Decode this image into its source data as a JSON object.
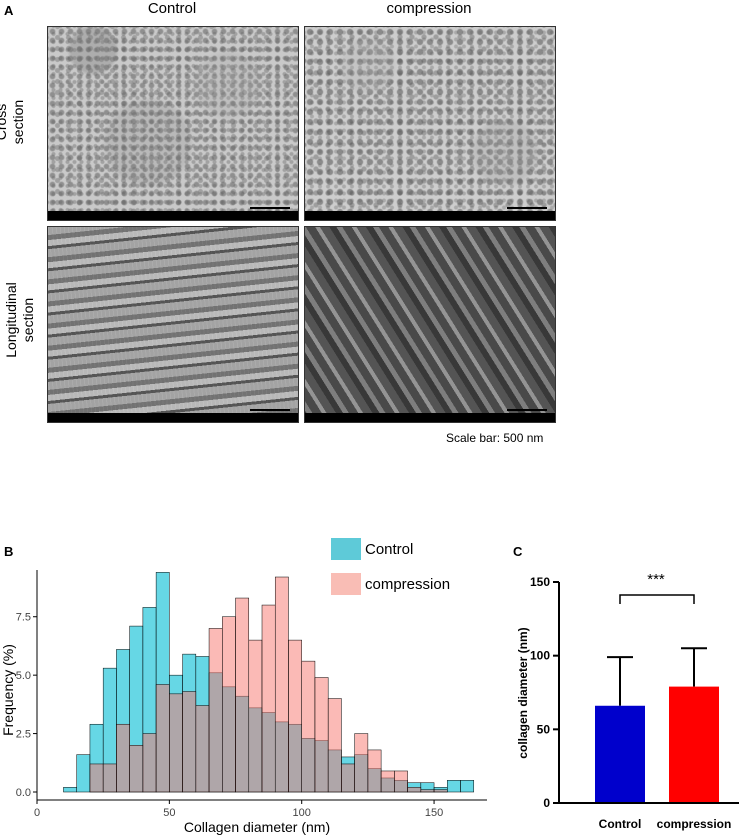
{
  "panel_a": {
    "letter": "A",
    "col_titles": [
      "Control",
      "compression"
    ],
    "row_labels": [
      "Cross section",
      "Longitudinal section"
    ],
    "scale_note": "Scale bar: 500 nm"
  },
  "panel_b": {
    "letter": "B",
    "legend": [
      "Control",
      "compression"
    ]
  },
  "panel_c": {
    "letter": "C",
    "significance": "***"
  },
  "chart_data": [
    {
      "type": "bar",
      "subtype": "histogram",
      "xlabel": "Collagen diameter (nm)",
      "ylabel": "Frequency (%)",
      "xlim": [
        0,
        170
      ],
      "ylim": [
        0,
        9.5
      ],
      "xticks": [
        "0",
        "50",
        "100",
        "150"
      ],
      "yticks": [
        "0.0",
        "2.5",
        "5.0",
        "7.5"
      ],
      "grid": false,
      "legend_position": "top-right",
      "bin_width": 5,
      "bin_starts": [
        5,
        10,
        15,
        20,
        25,
        30,
        35,
        40,
        45,
        50,
        55,
        60,
        65,
        70,
        75,
        80,
        85,
        90,
        95,
        100,
        105,
        110,
        115,
        120,
        125,
        130,
        135,
        140,
        145,
        150,
        155,
        160
      ],
      "series": [
        {
          "name": "Control",
          "color": "#00BCD4",
          "values": [
            0,
            0.2,
            1.6,
            2.9,
            5.3,
            6.1,
            7.1,
            7.9,
            9.4,
            5.0,
            5.9,
            5.8,
            5.1,
            4.5,
            4.1,
            3.6,
            3.4,
            3.0,
            2.9,
            2.3,
            2.2,
            1.8,
            1.5,
            1.6,
            1.0,
            0.6,
            0.5,
            0.4,
            0.4,
            0.2,
            0.5,
            0.5
          ]
        },
        {
          "name": "compression",
          "color": "#F8766D",
          "values": [
            0,
            0,
            0,
            1.2,
            1.2,
            2.9,
            2.0,
            2.5,
            4.6,
            4.2,
            4.3,
            3.7,
            7.0,
            7.5,
            8.3,
            6.5,
            8.0,
            9.2,
            6.5,
            5.6,
            4.9,
            4.0,
            1.2,
            2.5,
            1.8,
            0.9,
            0.9,
            0.2,
            0.1,
            0.1,
            0,
            0
          ]
        }
      ]
    },
    {
      "type": "bar",
      "ylabel": "collagen diameter (nm)",
      "ylim": [
        0,
        150
      ],
      "yticks": [
        "0",
        "50",
        "100",
        "150"
      ],
      "categories": [
        "Control",
        "compression"
      ],
      "values": [
        66,
        79
      ],
      "error_upper": [
        99,
        105
      ],
      "colors": [
        "#0000CC",
        "#FF0000"
      ]
    }
  ]
}
